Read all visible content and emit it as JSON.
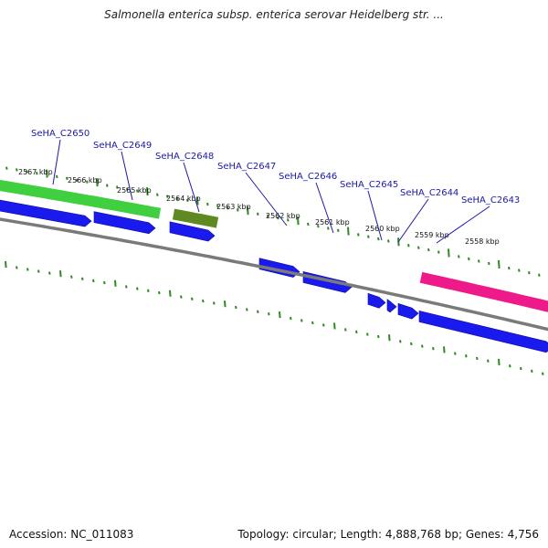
{
  "title": "Salmonella enterica subsp. enterica serovar Heidelberg str. ...",
  "footer": {
    "accession": "Accession: NC_011083",
    "summary": "Topology: circular; Length: 4,888,768 bp; Genes: 4,756"
  },
  "colors": {
    "tick": "#2f8a22",
    "gene_arrow": "#1a1aee",
    "backbone": "#7a7a7a",
    "green_feature": "#3fcf3f",
    "olive_feature": "#5f8a22",
    "pink_feature": "#ee1a8a",
    "label": "#1a1aa6"
  },
  "scale_labels": [
    "2567 kbp",
    "2566 kbp",
    "2565 kbp",
    "2564 kbp",
    "2563 kbp",
    "2562 kbp",
    "2561 kbp",
    "2560 kbp",
    "2559 kbp",
    "2558 kbp"
  ],
  "gene_labels": [
    "SeHA_C2650",
    "SeHA_C2649",
    "SeHA_C2648",
    "SeHA_C2647",
    "SeHA_C2646",
    "SeHA_C2645",
    "SeHA_C2644",
    "SeHA_C2643"
  ],
  "features": [
    {
      "name": "green-feature-bar",
      "color_key": "green_feature"
    },
    {
      "name": "olive-feature-bar",
      "color_key": "olive_feature"
    },
    {
      "name": "pink-feature-bar",
      "color_key": "pink_feature"
    }
  ]
}
